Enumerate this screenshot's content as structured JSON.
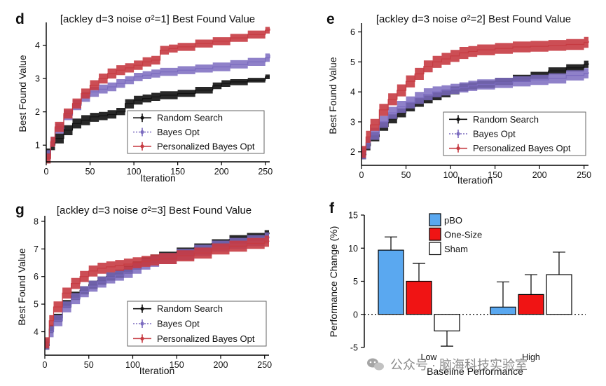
{
  "chart_data": [
    {
      "panel": "d",
      "type": "line",
      "title": "[ackley d=3 noise σ²=1] Best Found Value",
      "xlabel": "Iteration",
      "ylabel": "Best Found Value",
      "xlim": [
        0,
        255
      ],
      "ylim": [
        0.5,
        4.6
      ],
      "xticks": [
        0,
        50,
        100,
        150,
        200,
        250
      ],
      "yticks": [
        1,
        2,
        3,
        4
      ],
      "legend": "bottom-right",
      "series": [
        {
          "name": "Random Search",
          "color": "#111111",
          "style": "band",
          "x": [
            0,
            5,
            10,
            20,
            30,
            40,
            50,
            60,
            70,
            80,
            90,
            100,
            110,
            120,
            130,
            150,
            170,
            190,
            200,
            210,
            230,
            250,
            255
          ],
          "y": [
            0.75,
            1.0,
            1.2,
            1.45,
            1.65,
            1.75,
            1.85,
            1.88,
            1.92,
            2.0,
            2.25,
            2.35,
            2.4,
            2.45,
            2.5,
            2.55,
            2.65,
            2.78,
            2.85,
            2.9,
            2.95,
            3.05,
            3.05
          ],
          "lo": [
            0.6,
            0.85,
            1.05,
            1.3,
            1.5,
            1.6,
            1.7,
            1.75,
            1.8,
            1.9,
            2.1,
            2.22,
            2.28,
            2.33,
            2.38,
            2.45,
            2.55,
            2.68,
            2.75,
            2.8,
            2.88,
            2.98,
            2.98
          ],
          "hi": [
            0.9,
            1.15,
            1.35,
            1.6,
            1.8,
            1.9,
            1.97,
            2.0,
            2.05,
            2.12,
            2.38,
            2.48,
            2.52,
            2.57,
            2.62,
            2.66,
            2.75,
            2.88,
            2.95,
            2.98,
            3.02,
            3.12,
            3.12
          ]
        },
        {
          "name": "Bayes Opt",
          "color": "#7b6bbf",
          "style": "band",
          "x": [
            0,
            5,
            10,
            20,
            30,
            40,
            50,
            60,
            70,
            80,
            90,
            100,
            110,
            120,
            130,
            150,
            170,
            190,
            210,
            230,
            250,
            255
          ],
          "y": [
            0.7,
            1.1,
            1.5,
            1.9,
            2.2,
            2.45,
            2.6,
            2.68,
            2.75,
            2.85,
            2.95,
            3.05,
            3.1,
            3.15,
            3.2,
            3.25,
            3.3,
            3.35,
            3.42,
            3.5,
            3.62,
            3.72
          ],
          "lo": [
            0.55,
            0.95,
            1.35,
            1.75,
            2.05,
            2.3,
            2.45,
            2.55,
            2.62,
            2.72,
            2.83,
            2.92,
            2.98,
            3.03,
            3.08,
            3.13,
            3.18,
            3.22,
            3.3,
            3.38,
            3.5,
            3.6
          ],
          "hi": [
            0.85,
            1.25,
            1.65,
            2.05,
            2.35,
            2.6,
            2.75,
            2.82,
            2.88,
            2.98,
            3.07,
            3.17,
            3.22,
            3.27,
            3.32,
            3.37,
            3.42,
            3.48,
            3.55,
            3.62,
            3.75,
            3.84
          ]
        },
        {
          "name": "Personalized Bayes Opt",
          "color": "#c63b42",
          "style": "band",
          "x": [
            0,
            5,
            10,
            20,
            30,
            40,
            50,
            60,
            70,
            80,
            90,
            100,
            110,
            120,
            130,
            140,
            150,
            170,
            190,
            210,
            230,
            250,
            255
          ],
          "y": [
            0.6,
            1.1,
            1.55,
            1.95,
            2.25,
            2.55,
            2.8,
            3.0,
            3.15,
            3.25,
            3.32,
            3.4,
            3.5,
            3.55,
            3.85,
            3.9,
            3.95,
            4.05,
            4.12,
            4.22,
            4.32,
            4.45,
            4.5
          ],
          "lo": [
            0.45,
            0.95,
            1.4,
            1.8,
            2.1,
            2.4,
            2.65,
            2.85,
            3.0,
            3.1,
            3.18,
            3.26,
            3.36,
            3.42,
            3.72,
            3.78,
            3.83,
            3.93,
            4.0,
            4.1,
            4.2,
            4.35,
            4.4
          ],
          "hi": [
            0.75,
            1.25,
            1.7,
            2.1,
            2.4,
            2.7,
            2.95,
            3.15,
            3.3,
            3.4,
            3.46,
            3.54,
            3.64,
            3.68,
            3.98,
            4.02,
            4.07,
            4.17,
            4.24,
            4.34,
            4.44,
            4.55,
            4.6
          ]
        }
      ]
    },
    {
      "panel": "e",
      "type": "line",
      "title": "[ackley d=3 noise σ²=2] Best Found Value",
      "xlabel": "Iteration",
      "ylabel": "Best Found Value",
      "xlim": [
        0,
        255
      ],
      "ylim": [
        1.55,
        6.2
      ],
      "xticks": [
        0,
        50,
        100,
        150,
        200,
        250
      ],
      "yticks": [
        2,
        3,
        4,
        5,
        6
      ],
      "legend": "bottom-right",
      "series": [
        {
          "name": "Random Search",
          "color": "#111111",
          "style": "band",
          "x": [
            0,
            5,
            10,
            20,
            30,
            40,
            50,
            60,
            70,
            80,
            90,
            100,
            110,
            120,
            130,
            150,
            170,
            190,
            210,
            230,
            250,
            255
          ],
          "y": [
            1.9,
            2.2,
            2.5,
            2.85,
            3.1,
            3.3,
            3.5,
            3.65,
            3.75,
            3.85,
            3.95,
            4.05,
            4.15,
            4.2,
            4.25,
            4.35,
            4.45,
            4.55,
            4.7,
            4.8,
            4.92,
            4.95
          ],
          "lo": [
            1.75,
            2.05,
            2.35,
            2.7,
            2.95,
            3.15,
            3.35,
            3.5,
            3.62,
            3.72,
            3.82,
            3.92,
            4.02,
            4.08,
            4.13,
            4.23,
            4.33,
            4.43,
            4.58,
            4.68,
            4.8,
            4.84
          ],
          "hi": [
            2.05,
            2.35,
            2.65,
            3.0,
            3.25,
            3.45,
            3.65,
            3.8,
            3.88,
            3.98,
            4.08,
            4.18,
            4.28,
            4.32,
            4.37,
            4.47,
            4.57,
            4.67,
            4.82,
            4.92,
            5.04,
            5.06
          ]
        },
        {
          "name": "Bayes Opt",
          "color": "#7b6bbf",
          "style": "band",
          "x": [
            0,
            5,
            10,
            20,
            30,
            40,
            50,
            60,
            70,
            80,
            90,
            100,
            110,
            120,
            130,
            150,
            170,
            190,
            210,
            230,
            250,
            255
          ],
          "y": [
            1.95,
            2.3,
            2.6,
            3.0,
            3.3,
            3.5,
            3.65,
            3.8,
            3.92,
            4.0,
            4.05,
            4.1,
            4.15,
            4.2,
            4.25,
            4.3,
            4.35,
            4.4,
            4.45,
            4.55,
            4.62,
            4.65
          ],
          "lo": [
            1.75,
            2.1,
            2.4,
            2.8,
            3.1,
            3.3,
            3.45,
            3.6,
            3.72,
            3.82,
            3.88,
            3.93,
            3.98,
            4.03,
            4.08,
            4.13,
            4.18,
            4.23,
            4.28,
            4.38,
            4.45,
            4.48
          ],
          "hi": [
            2.15,
            2.5,
            2.8,
            3.2,
            3.5,
            3.7,
            3.85,
            4.0,
            4.12,
            4.18,
            4.22,
            4.27,
            4.32,
            4.37,
            4.42,
            4.47,
            4.52,
            4.57,
            4.62,
            4.72,
            4.79,
            4.82
          ]
        },
        {
          "name": "Personalized Bayes Opt",
          "color": "#c63b42",
          "style": "band",
          "x": [
            0,
            5,
            10,
            20,
            30,
            40,
            50,
            60,
            70,
            80,
            90,
            100,
            110,
            120,
            130,
            150,
            170,
            190,
            210,
            230,
            250,
            255
          ],
          "y": [
            2.0,
            2.5,
            2.9,
            3.4,
            3.75,
            4.05,
            4.35,
            4.6,
            4.85,
            5.0,
            5.1,
            5.2,
            5.3,
            5.35,
            5.4,
            5.45,
            5.5,
            5.52,
            5.55,
            5.58,
            5.65,
            5.7
          ],
          "lo": [
            1.8,
            2.3,
            2.7,
            3.2,
            3.55,
            3.85,
            4.15,
            4.4,
            4.65,
            4.8,
            4.9,
            5.0,
            5.1,
            5.17,
            5.22,
            5.27,
            5.32,
            5.34,
            5.37,
            5.4,
            5.47,
            5.52
          ],
          "hi": [
            2.2,
            2.7,
            3.1,
            3.6,
            3.95,
            4.25,
            4.55,
            4.8,
            5.05,
            5.2,
            5.3,
            5.4,
            5.5,
            5.53,
            5.58,
            5.63,
            5.68,
            5.7,
            5.73,
            5.76,
            5.83,
            5.88
          ]
        }
      ]
    },
    {
      "panel": "g",
      "type": "line",
      "title": "[ackley d=3 noise σ²=3] Best Found Value",
      "xlabel": "Iteration",
      "ylabel": "Best Found Value",
      "xlim": [
        0,
        255
      ],
      "ylim": [
        3.15,
        8.1
      ],
      "xticks": [
        0,
        50,
        100,
        150,
        200,
        250
      ],
      "yticks": [
        4,
        5,
        6,
        7,
        8
      ],
      "legend": "bottom-right",
      "series": [
        {
          "name": "Random Search",
          "color": "#111111",
          "style": "band",
          "x": [
            0,
            5,
            10,
            20,
            30,
            40,
            50,
            60,
            70,
            80,
            90,
            100,
            110,
            120,
            130,
            150,
            170,
            190,
            210,
            230,
            250,
            255
          ],
          "y": [
            3.5,
            4.1,
            4.5,
            5.0,
            5.3,
            5.5,
            5.7,
            5.85,
            6.0,
            6.1,
            6.25,
            6.4,
            6.55,
            6.65,
            6.75,
            6.9,
            7.05,
            7.2,
            7.35,
            7.45,
            7.55,
            7.6
          ],
          "lo": [
            3.35,
            3.95,
            4.35,
            4.85,
            5.15,
            5.35,
            5.55,
            5.7,
            5.85,
            5.95,
            6.1,
            6.25,
            6.4,
            6.5,
            6.6,
            6.75,
            6.9,
            7.05,
            7.2,
            7.32,
            7.42,
            7.47
          ],
          "hi": [
            3.65,
            4.25,
            4.65,
            5.15,
            5.45,
            5.65,
            5.85,
            6.0,
            6.15,
            6.25,
            6.4,
            6.55,
            6.7,
            6.8,
            6.9,
            7.05,
            7.2,
            7.35,
            7.5,
            7.58,
            7.68,
            7.73
          ]
        },
        {
          "name": "Bayes Opt",
          "color": "#7b6bbf",
          "style": "band",
          "x": [
            0,
            5,
            10,
            20,
            30,
            40,
            50,
            60,
            70,
            80,
            90,
            100,
            110,
            120,
            130,
            150,
            170,
            190,
            210,
            230,
            250,
            255
          ],
          "y": [
            3.55,
            4.0,
            4.4,
            4.9,
            5.2,
            5.45,
            5.65,
            5.8,
            5.95,
            6.05,
            6.15,
            6.3,
            6.45,
            6.55,
            6.65,
            6.8,
            6.95,
            7.1,
            7.2,
            7.3,
            7.4,
            7.45
          ],
          "lo": [
            3.35,
            3.8,
            4.2,
            4.7,
            5.0,
            5.25,
            5.45,
            5.6,
            5.75,
            5.85,
            5.95,
            6.1,
            6.25,
            6.35,
            6.45,
            6.6,
            6.75,
            6.9,
            7.0,
            7.1,
            7.2,
            7.25
          ],
          "hi": [
            3.75,
            4.2,
            4.6,
            5.1,
            5.4,
            5.65,
            5.85,
            6.0,
            6.15,
            6.25,
            6.35,
            6.5,
            6.65,
            6.75,
            6.85,
            7.0,
            7.15,
            7.3,
            7.4,
            7.5,
            7.6,
            7.65
          ]
        },
        {
          "name": "Personalized Bayes Opt",
          "color": "#c63b42",
          "style": "band",
          "x": [
            0,
            5,
            10,
            20,
            30,
            40,
            50,
            60,
            70,
            80,
            90,
            100,
            110,
            120,
            130,
            150,
            170,
            190,
            210,
            230,
            250,
            255
          ],
          "y": [
            3.6,
            4.4,
            4.9,
            5.4,
            5.75,
            6.0,
            6.2,
            6.3,
            6.35,
            6.4,
            6.45,
            6.5,
            6.55,
            6.6,
            6.65,
            6.75,
            6.85,
            7.0,
            7.1,
            7.2,
            7.28,
            7.3
          ],
          "lo": [
            3.4,
            4.2,
            4.7,
            5.2,
            5.55,
            5.8,
            6.0,
            6.1,
            6.15,
            6.2,
            6.25,
            6.3,
            6.35,
            6.4,
            6.45,
            6.55,
            6.65,
            6.8,
            6.9,
            7.0,
            7.08,
            7.1
          ],
          "hi": [
            3.8,
            4.6,
            5.1,
            5.6,
            5.95,
            6.2,
            6.4,
            6.5,
            6.55,
            6.6,
            6.65,
            6.7,
            6.75,
            6.8,
            6.85,
            6.95,
            7.05,
            7.2,
            7.3,
            7.4,
            7.48,
            7.5
          ]
        }
      ]
    },
    {
      "panel": "f",
      "type": "bar",
      "title": "",
      "xlabel": "Baseline Performance",
      "ylabel": "Performance Change (%)",
      "ylim": [
        -5,
        15
      ],
      "yticks": [
        -5,
        0,
        5,
        10,
        15
      ],
      "categories": [
        "Low",
        "High"
      ],
      "legend": "top-left",
      "zero_line": "dotted",
      "series": [
        {
          "name": "pBO",
          "color": "#5aa8f0",
          "values": [
            9.7,
            1.1
          ],
          "err": [
            2.0,
            3.8
          ]
        },
        {
          "name": "One-Size",
          "color": "#f01414",
          "values": [
            5.0,
            3.0
          ],
          "err": [
            2.7,
            3.0
          ]
        },
        {
          "name": "Sham",
          "color": "#ffffff",
          "values": [
            -2.5,
            6.0
          ],
          "err": [
            2.3,
            3.4
          ]
        }
      ]
    }
  ],
  "watermark": {
    "text": "公众号 · 脑海科技实验室",
    "icon": "wechat-icon"
  }
}
